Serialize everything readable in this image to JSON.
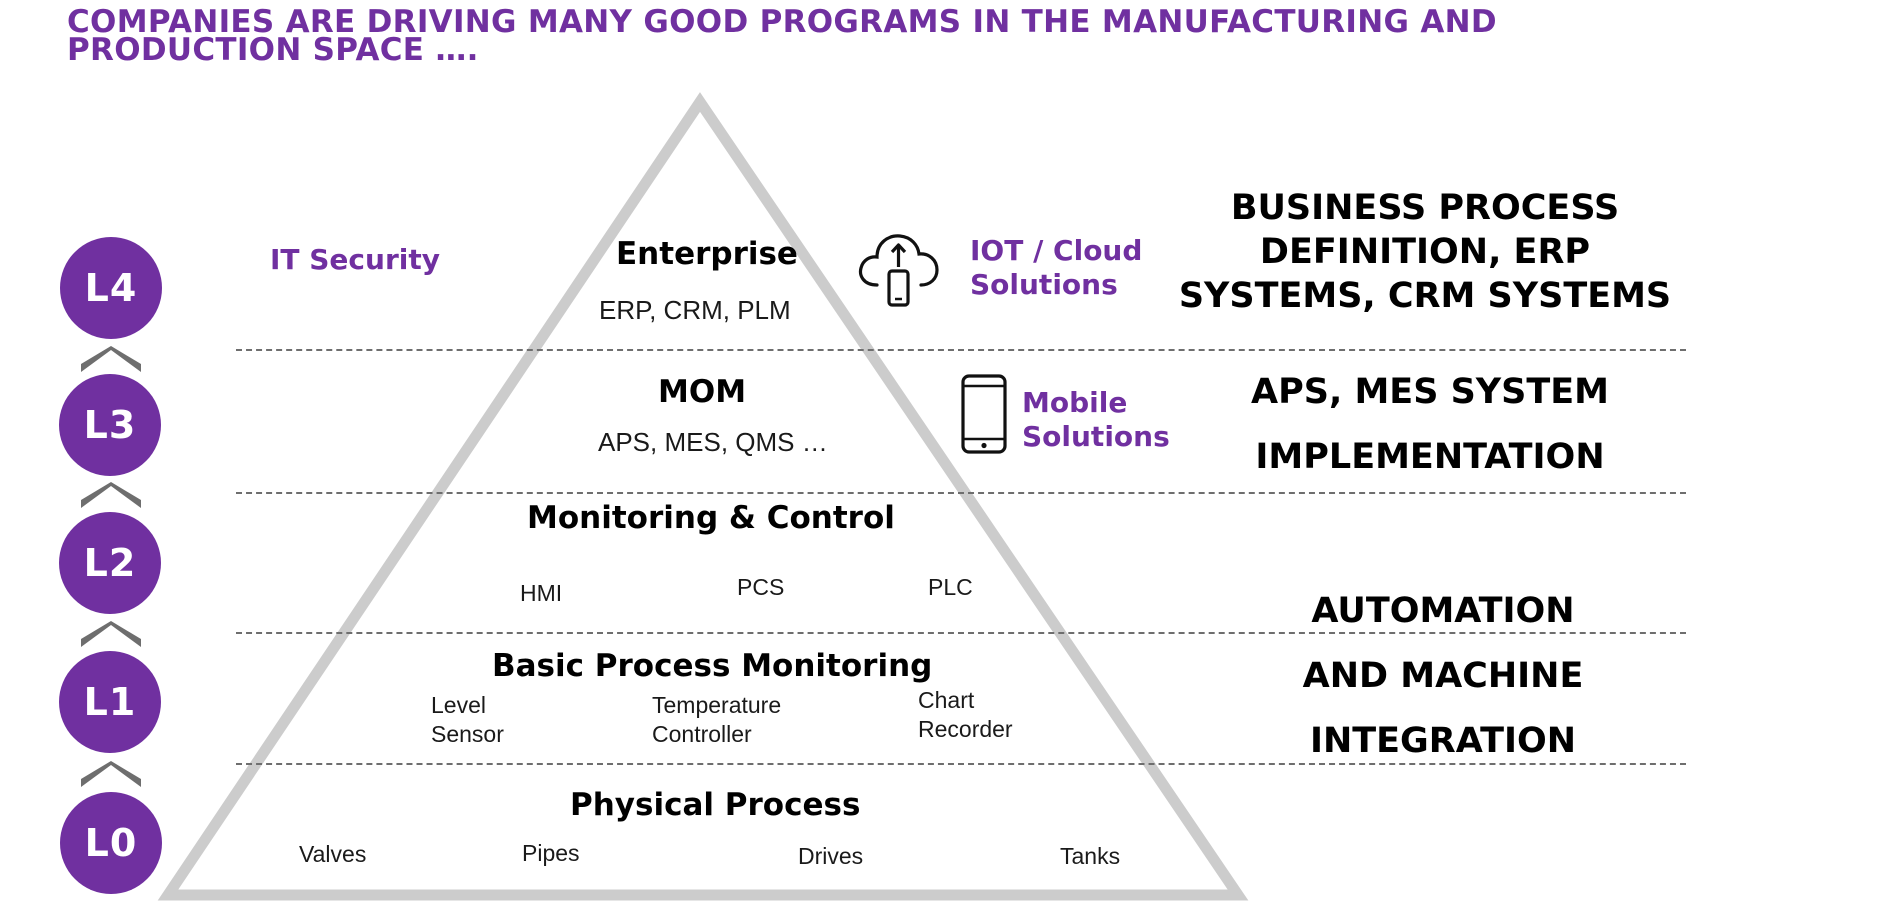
{
  "title": {
    "line1": "COMPANIES ARE DRIVING MANY GOOD PROGRAMS IN THE MANUFACTURING AND",
    "line2": "PRODUCTION SPACE …."
  },
  "levels": [
    {
      "label": "L4"
    },
    {
      "label": "L3"
    },
    {
      "label": "L2"
    },
    {
      "label": "L1"
    },
    {
      "label": "L0"
    }
  ],
  "layers": {
    "enterprise": {
      "title": "Enterprise",
      "subtitle": "ERP, CRM, PLM"
    },
    "mom": {
      "title": "MOM",
      "subtitle": "APS, MES, QMS …"
    },
    "monitoring": {
      "title": "Monitoring & Control",
      "items": [
        "HMI",
        "PCS",
        "PLC"
      ]
    },
    "basic": {
      "title": "Basic Process Monitoring",
      "items": [
        "Level\nSensor",
        "Temperature\nController",
        "Chart\nRecorder"
      ]
    },
    "physical": {
      "title": "Physical Process",
      "items": [
        "Valves",
        "Pipes",
        "Drives",
        "Tanks"
      ]
    }
  },
  "side_labels": {
    "it_security": "IT Security",
    "iot_cloud": "IOT / Cloud\nSolutions",
    "mobile": "Mobile\nSolutions"
  },
  "right_labels": {
    "business": "BUSINESS PROCESS\nDEFINITION, ERP\nSYSTEMS, CRM SYSTEMS",
    "aps_line1": "APS, MES SYSTEM",
    "aps_line2": "IMPLEMENTATION",
    "automation_line1": "AUTOMATION",
    "automation_line2": "AND MACHINE",
    "automation_line3": "INTEGRATION"
  },
  "icons": {
    "cloud": "cloud-upload-phone-icon",
    "mobile": "mobile-phone-icon",
    "chevron": "chevron-up-icon"
  },
  "colors": {
    "accent": "#7030a0",
    "pyramid_stroke": "#cccccc",
    "chevron": "#6e6e6e",
    "text": "#000000"
  }
}
